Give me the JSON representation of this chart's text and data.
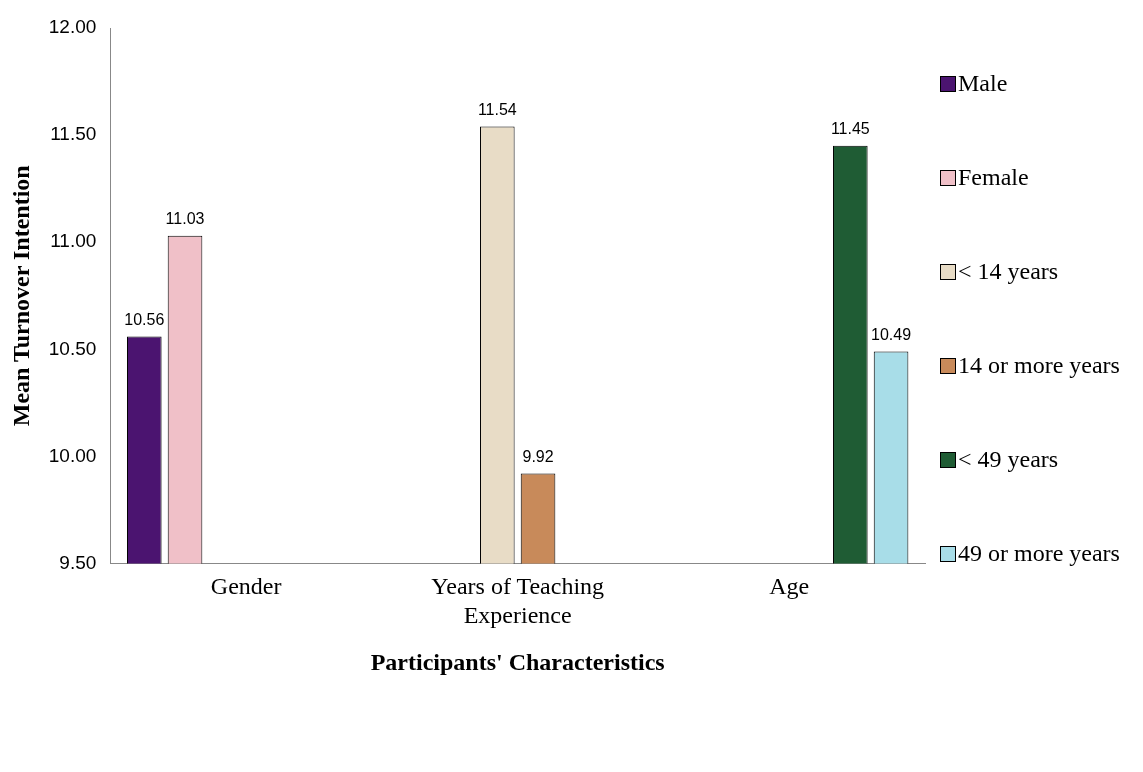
{
  "chart_data": {
    "type": "bar",
    "xlabel": "Participants' Characteristics",
    "ylabel": "Mean Turnover Intention",
    "categories": [
      "Gender",
      "Years of Teaching Experience",
      "Age"
    ],
    "series": [
      {
        "name": "Male",
        "color": "#4b1470",
        "values": [
          10.56,
          null,
          null
        ]
      },
      {
        "name": "Female",
        "color": "#f0c0c8",
        "values": [
          11.03,
          null,
          null
        ]
      },
      {
        "name": "< 14 years",
        "color": "#e8dcc6",
        "values": [
          null,
          11.54,
          null
        ]
      },
      {
        "name": "14 or more years",
        "color": "#c88a5a",
        "values": [
          null,
          9.92,
          null
        ]
      },
      {
        "name": "< 49 years",
        "color": "#1f5c34",
        "values": [
          null,
          null,
          11.45
        ]
      },
      {
        "name": "49 or more years",
        "color": "#a8dde8",
        "values": [
          null,
          null,
          10.49
        ]
      }
    ],
    "ylim": [
      9.5,
      12
    ],
    "yticks": [
      {
        "value": 9.5,
        "label": "9.50"
      },
      {
        "value": 10,
        "label": "10.00"
      },
      {
        "value": 10.5,
        "label": "10.50"
      },
      {
        "value": 11,
        "label": "11.00"
      },
      {
        "value": 11.5,
        "label": "11.50"
      },
      {
        "value": 12,
        "label": "12.00"
      }
    ],
    "grid": false,
    "legend": "right",
    "data_labels": true
  }
}
